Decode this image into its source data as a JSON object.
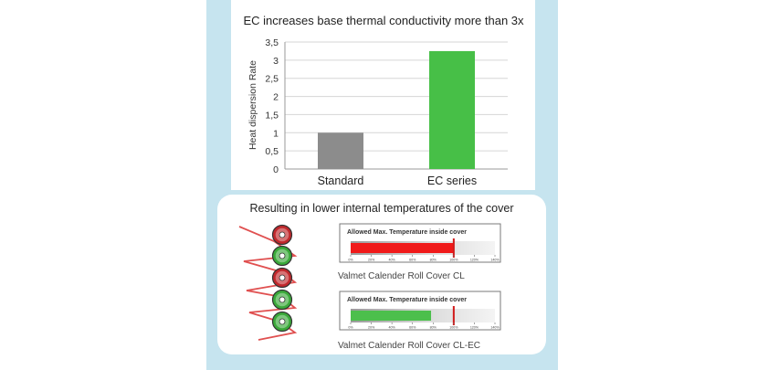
{
  "chart_data": {
    "type": "bar",
    "title": "EC increases base thermal conductivity more than 3x",
    "ylabel": "Heat dispersion Rate",
    "xlabel": "",
    "categories": [
      "Standard",
      "EC series"
    ],
    "values": [
      1.0,
      3.25
    ],
    "ylim": [
      0,
      3.5
    ],
    "yticks": [
      "0",
      "0,5",
      "1",
      "1,5",
      "2",
      "2,5",
      "3",
      "3,5"
    ],
    "ytick_values": [
      0,
      0.5,
      1,
      1.5,
      2,
      2.5,
      3,
      3.5
    ],
    "grid": true,
    "colors": [
      "#8c8c8c",
      "#47bf47"
    ]
  },
  "temperature_section": {
    "title": "Resulting in lower internal temperatures of the cover",
    "gauge_ticks": [
      "0%",
      "20%",
      "40%",
      "60%",
      "80%",
      "100%",
      "120%",
      "140%"
    ],
    "gauges": [
      {
        "header": "Allowed Max. Temperature inside cover",
        "caption": "Valmet Calender Roll Cover CL",
        "fill_percent": 100,
        "fill_color": "#f01a1a",
        "limit_percent": 100,
        "limit_color": "#d11a1a"
      },
      {
        "header": "Allowed Max. Temperature inside cover",
        "caption": "Valmet Calender Roll Cover CL-EC",
        "fill_percent": 78,
        "fill_color": "#4cbf4c",
        "limit_percent": 100,
        "limit_color": "#d11a1a"
      }
    ],
    "rolls": [
      "red",
      "green",
      "red",
      "green",
      "green"
    ],
    "colors": {
      "red": "#c0282c",
      "green": "#3aa93a",
      "web": "#e05050"
    }
  }
}
